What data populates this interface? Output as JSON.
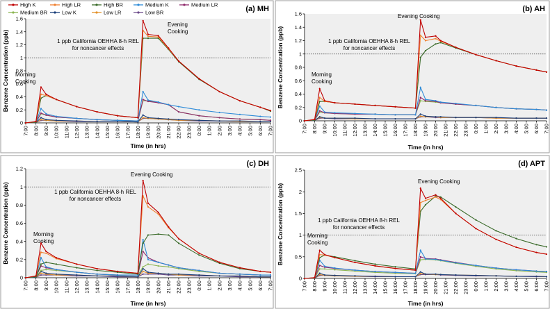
{
  "figure": {
    "legend": [
      {
        "name": "High K",
        "color": "#c00000"
      },
      {
        "name": "High LR",
        "color": "#f08030"
      },
      {
        "name": "High BR",
        "color": "#3a6b2a"
      },
      {
        "name": "Medium K",
        "color": "#2e8bd8"
      },
      {
        "name": "Medium LR",
        "color": "#8e2a6b"
      },
      {
        "name": "Medium BR",
        "color": "#8cb552"
      },
      {
        "name": "Low K",
        "color": "#1a3e7a"
      },
      {
        "name": "Low LR",
        "color": "#e3912a"
      },
      {
        "name": "Low BR",
        "color": "#6b4a8a"
      }
    ],
    "x_tick_labels": [
      "7:00",
      "8:00",
      "9:00",
      "10:00",
      "11:00",
      "12:00",
      "13:00",
      "14:00",
      "15:00",
      "16:00",
      "17:00",
      "18:00",
      "19:00",
      "20:00",
      "21:00",
      "22:00",
      "23:00",
      "0:00",
      "1:00",
      "2:00",
      "3:00",
      "4:00",
      "5:00",
      "6:00",
      "7:00"
    ],
    "xlabel": "Time (in hrs)",
    "ylabel": "Benzene Concentration (ppb)",
    "ref_label_line1": "1 ppb California OEHHA 8-h REL",
    "ref_label_line2": "for noncancer effects",
    "morning_label_line1": "Morning",
    "morning_label_line2": "Cooking",
    "evening_label_line1": "Evening",
    "evening_label_line2": "Cooking",
    "evening_label_single": "Evening Cooking"
  },
  "chart_data": [
    {
      "type": "line",
      "title": "(a) MH",
      "ylim": [
        0,
        1.6
      ],
      "yticks": [
        0,
        0.2,
        0.4,
        0.6,
        0.8,
        1,
        1.2,
        1.4,
        1.6
      ],
      "x": [
        7,
        8,
        8.5,
        9,
        10,
        12,
        14,
        16,
        18,
        18.5,
        19,
        20,
        21,
        22,
        24,
        26,
        28,
        30,
        31
      ],
      "series": [
        {
          "name": "High K",
          "values": [
            0,
            0.02,
            0.55,
            0.44,
            0.36,
            0.25,
            0.17,
            0.11,
            0.08,
            1.57,
            1.36,
            1.34,
            1.15,
            0.95,
            0.68,
            0.48,
            0.34,
            0.24,
            0.19
          ]
        },
        {
          "name": "High LR",
          "values": [
            0,
            0.02,
            0.44,
            0.42,
            0.36,
            0.25,
            0.17,
            0.11,
            0.08,
            1.42,
            1.33,
            1.32,
            1.14,
            0.95,
            0.68,
            0.48,
            0.34,
            0.24,
            0.19
          ]
        },
        {
          "name": "High BR",
          "values": [
            0,
            0.01,
            0.38,
            0.42,
            0.36,
            0.25,
            0.17,
            0.11,
            0.08,
            1.3,
            1.3,
            1.3,
            1.13,
            0.94,
            0.67,
            0.48,
            0.34,
            0.24,
            0.18
          ]
        },
        {
          "name": "Medium K",
          "values": [
            0,
            0.01,
            0.22,
            0.14,
            0.1,
            0.07,
            0.05,
            0.04,
            0.03,
            0.48,
            0.35,
            0.32,
            0.28,
            0.25,
            0.2,
            0.16,
            0.13,
            0.1,
            0.09
          ]
        },
        {
          "name": "Medium LR",
          "values": [
            0,
            0.01,
            0.15,
            0.12,
            0.09,
            0.07,
            0.05,
            0.04,
            0.03,
            0.36,
            0.33,
            0.31,
            0.28,
            0.17,
            0.11,
            0.08,
            0.06,
            0.05,
            0.04
          ]
        },
        {
          "name": "Medium BR",
          "values": [
            0,
            0.01,
            0.14,
            0.12,
            0.09,
            0.07,
            0.05,
            0.04,
            0.03,
            0.34,
            0.34,
            0.31,
            0.28,
            0.17,
            0.11,
            0.08,
            0.06,
            0.05,
            0.04
          ]
        },
        {
          "name": "Low K",
          "values": [
            0,
            0.005,
            0.08,
            0.05,
            0.04,
            0.03,
            0.02,
            0.02,
            0.015,
            0.12,
            0.08,
            0.07,
            0.06,
            0.05,
            0.04,
            0.03,
            0.03,
            0.02,
            0.02
          ]
        },
        {
          "name": "Low LR",
          "values": [
            0,
            0.005,
            0.05,
            0.04,
            0.03,
            0.03,
            0.02,
            0.02,
            0.015,
            0.08,
            0.07,
            0.06,
            0.05,
            0.04,
            0.04,
            0.03,
            0.02,
            0.02,
            0.02
          ]
        },
        {
          "name": "Low BR",
          "values": [
            0,
            0.005,
            0.04,
            0.04,
            0.03,
            0.02,
            0.02,
            0.02,
            0.015,
            0.07,
            0.07,
            0.06,
            0.05,
            0.04,
            0.03,
            0.03,
            0.02,
            0.02,
            0.02
          ]
        }
      ]
    },
    {
      "type": "line",
      "title": "(b) AH",
      "ylim": [
        0,
        1.6
      ],
      "yticks": [
        0,
        0.2,
        0.4,
        0.6,
        0.8,
        1,
        1.2,
        1.4,
        1.6
      ],
      "x": [
        7,
        8,
        8.5,
        9,
        10,
        12,
        14,
        16,
        18,
        18.5,
        19,
        20,
        20.5,
        22,
        24,
        26,
        28,
        30,
        31
      ],
      "series": [
        {
          "name": "High K",
          "values": [
            0,
            0.02,
            0.48,
            0.3,
            0.27,
            0.25,
            0.23,
            0.21,
            0.19,
            1.51,
            1.25,
            1.27,
            1.2,
            1.1,
            0.99,
            0.9,
            0.82,
            0.76,
            0.73
          ]
        },
        {
          "name": "High LR",
          "values": [
            0,
            0.02,
            0.35,
            0.29,
            0.27,
            0.25,
            0.23,
            0.21,
            0.19,
            1.28,
            1.2,
            1.23,
            1.19,
            1.1,
            0.99,
            0.9,
            0.82,
            0.76,
            0.73
          ]
        },
        {
          "name": "High BR",
          "values": [
            0,
            0.01,
            0.29,
            0.29,
            0.27,
            0.25,
            0.23,
            0.21,
            0.19,
            0.95,
            1.05,
            1.15,
            1.17,
            1.09,
            0.99,
            0.9,
            0.82,
            0.76,
            0.73
          ]
        },
        {
          "name": "Medium K",
          "values": [
            0,
            0.01,
            0.22,
            0.13,
            0.12,
            0.11,
            0.1,
            0.09,
            0.09,
            0.5,
            0.32,
            0.3,
            0.28,
            0.26,
            0.23,
            0.2,
            0.18,
            0.17,
            0.16
          ]
        },
        {
          "name": "Medium LR",
          "values": [
            0,
            0.01,
            0.15,
            0.12,
            0.11,
            0.1,
            0.1,
            0.09,
            0.09,
            0.35,
            0.3,
            0.29,
            0.27,
            0.25,
            0.23,
            0.2,
            0.18,
            0.17,
            0.16
          ]
        },
        {
          "name": "Medium BR",
          "values": [
            0,
            0.01,
            0.13,
            0.12,
            0.11,
            0.1,
            0.1,
            0.09,
            0.09,
            0.3,
            0.29,
            0.28,
            0.27,
            0.25,
            0.23,
            0.2,
            0.18,
            0.17,
            0.16
          ]
        },
        {
          "name": "Low K",
          "values": [
            0,
            0.005,
            0.06,
            0.04,
            0.04,
            0.04,
            0.03,
            0.03,
            0.03,
            0.1,
            0.07,
            0.06,
            0.06,
            0.05,
            0.05,
            0.05,
            0.04,
            0.04,
            0.04
          ]
        },
        {
          "name": "Low LR",
          "values": [
            0,
            0.005,
            0.05,
            0.04,
            0.04,
            0.03,
            0.03,
            0.03,
            0.03,
            0.07,
            0.06,
            0.06,
            0.05,
            0.05,
            0.05,
            0.04,
            0.04,
            0.04,
            0.04
          ]
        },
        {
          "name": "Low BR",
          "values": [
            0,
            0.005,
            0.04,
            0.04,
            0.03,
            0.03,
            0.03,
            0.03,
            0.03,
            0.06,
            0.06,
            0.05,
            0.05,
            0.05,
            0.05,
            0.04,
            0.04,
            0.04,
            0.04
          ]
        }
      ]
    },
    {
      "type": "line",
      "title": "(c) DH",
      "ylim": [
        0,
        1.2
      ],
      "yticks": [
        0,
        0.2,
        0.4,
        0.6,
        0.8,
        1,
        1.2
      ],
      "x": [
        7,
        8,
        8.5,
        9,
        10,
        12,
        14,
        16,
        18,
        18.5,
        19,
        20,
        21,
        22,
        24,
        26,
        28,
        30,
        31
      ],
      "series": [
        {
          "name": "High K",
          "values": [
            0,
            0.02,
            0.38,
            0.29,
            0.22,
            0.15,
            0.1,
            0.07,
            0.05,
            1.07,
            0.82,
            0.72,
            0.56,
            0.43,
            0.27,
            0.17,
            0.11,
            0.07,
            0.06
          ]
        },
        {
          "name": "High LR",
          "values": [
            0,
            0.02,
            0.28,
            0.27,
            0.21,
            0.15,
            0.1,
            0.07,
            0.05,
            0.9,
            0.78,
            0.7,
            0.55,
            0.43,
            0.27,
            0.17,
            0.11,
            0.07,
            0.06
          ]
        },
        {
          "name": "High BR",
          "values": [
            0,
            0.01,
            0.15,
            0.17,
            0.15,
            0.11,
            0.08,
            0.06,
            0.04,
            0.38,
            0.47,
            0.48,
            0.47,
            0.38,
            0.25,
            0.16,
            0.1,
            0.07,
            0.06
          ]
        },
        {
          "name": "Medium K",
          "values": [
            0,
            0.01,
            0.22,
            0.12,
            0.09,
            0.06,
            0.04,
            0.03,
            0.03,
            0.42,
            0.2,
            0.17,
            0.14,
            0.11,
            0.08,
            0.05,
            0.04,
            0.03,
            0.03
          ]
        },
        {
          "name": "Medium LR",
          "values": [
            0,
            0.01,
            0.13,
            0.11,
            0.09,
            0.06,
            0.04,
            0.03,
            0.03,
            0.29,
            0.22,
            0.17,
            0.14,
            0.11,
            0.08,
            0.05,
            0.04,
            0.03,
            0.03
          ]
        },
        {
          "name": "Medium BR",
          "values": [
            0,
            0.01,
            0.08,
            0.09,
            0.08,
            0.06,
            0.04,
            0.03,
            0.03,
            0.12,
            0.15,
            0.13,
            0.12,
            0.1,
            0.07,
            0.05,
            0.04,
            0.03,
            0.03
          ]
        },
        {
          "name": "Low K",
          "values": [
            0,
            0.005,
            0.07,
            0.05,
            0.04,
            0.03,
            0.02,
            0.02,
            0.01,
            0.1,
            0.06,
            0.05,
            0.04,
            0.04,
            0.03,
            0.02,
            0.02,
            0.01,
            0.01
          ]
        },
        {
          "name": "Low LR",
          "values": [
            0,
            0.005,
            0.05,
            0.04,
            0.03,
            0.03,
            0.02,
            0.02,
            0.01,
            0.07,
            0.05,
            0.05,
            0.04,
            0.03,
            0.03,
            0.02,
            0.02,
            0.01,
            0.01
          ]
        },
        {
          "name": "Low BR",
          "values": [
            0,
            0.005,
            0.03,
            0.03,
            0.03,
            0.02,
            0.02,
            0.01,
            0.01,
            0.04,
            0.04,
            0.04,
            0.03,
            0.03,
            0.02,
            0.02,
            0.01,
            0.01,
            0.01
          ]
        }
      ]
    },
    {
      "type": "line",
      "title": "(d) APT",
      "ylim": [
        0,
        2.5
      ],
      "yticks": [
        0,
        0.5,
        1,
        1.5,
        2,
        2.5
      ],
      "x": [
        7,
        8,
        8.5,
        9,
        10,
        12,
        14,
        16,
        18,
        18.5,
        19,
        20,
        20.5,
        22,
        24,
        26,
        28,
        30,
        31
      ],
      "series": [
        {
          "name": "High K",
          "values": [
            0,
            0.02,
            0.65,
            0.55,
            0.48,
            0.37,
            0.29,
            0.23,
            0.19,
            2.08,
            1.85,
            1.93,
            1.85,
            1.5,
            1.15,
            0.9,
            0.72,
            0.6,
            0.56
          ]
        },
        {
          "name": "High LR",
          "values": [
            0,
            0.02,
            0.55,
            0.54,
            0.48,
            0.37,
            0.29,
            0.23,
            0.19,
            1.75,
            1.8,
            1.88,
            1.82,
            1.5,
            1.15,
            0.9,
            0.72,
            0.6,
            0.56
          ]
        },
        {
          "name": "High BR",
          "values": [
            0,
            0.01,
            0.48,
            0.54,
            0.5,
            0.41,
            0.33,
            0.27,
            0.22,
            1.55,
            1.7,
            1.9,
            1.88,
            1.65,
            1.35,
            1.1,
            0.92,
            0.78,
            0.73
          ]
        },
        {
          "name": "Medium K",
          "values": [
            0,
            0.01,
            0.42,
            0.28,
            0.24,
            0.19,
            0.16,
            0.14,
            0.12,
            0.65,
            0.45,
            0.44,
            0.42,
            0.36,
            0.3,
            0.24,
            0.2,
            0.17,
            0.16
          ]
        },
        {
          "name": "Medium LR",
          "values": [
            0,
            0.01,
            0.3,
            0.26,
            0.23,
            0.19,
            0.16,
            0.14,
            0.12,
            0.5,
            0.46,
            0.45,
            0.43,
            0.37,
            0.3,
            0.24,
            0.2,
            0.17,
            0.16
          ]
        },
        {
          "name": "Medium BR",
          "values": [
            0,
            0.01,
            0.22,
            0.22,
            0.2,
            0.17,
            0.14,
            0.12,
            0.11,
            0.43,
            0.44,
            0.43,
            0.41,
            0.35,
            0.28,
            0.22,
            0.18,
            0.15,
            0.14
          ]
        },
        {
          "name": "Low K",
          "values": [
            0,
            0.005,
            0.12,
            0.08,
            0.07,
            0.06,
            0.05,
            0.04,
            0.04,
            0.15,
            0.1,
            0.1,
            0.09,
            0.08,
            0.07,
            0.06,
            0.05,
            0.05,
            0.04
          ]
        },
        {
          "name": "Low LR",
          "values": [
            0,
            0.005,
            0.09,
            0.07,
            0.06,
            0.05,
            0.05,
            0.04,
            0.04,
            0.11,
            0.1,
            0.09,
            0.09,
            0.08,
            0.07,
            0.06,
            0.05,
            0.05,
            0.04
          ]
        },
        {
          "name": "Low BR",
          "values": [
            0,
            0.005,
            0.07,
            0.07,
            0.06,
            0.05,
            0.04,
            0.04,
            0.04,
            0.09,
            0.09,
            0.09,
            0.08,
            0.07,
            0.06,
            0.06,
            0.05,
            0.04,
            0.04
          ]
        }
      ]
    }
  ]
}
